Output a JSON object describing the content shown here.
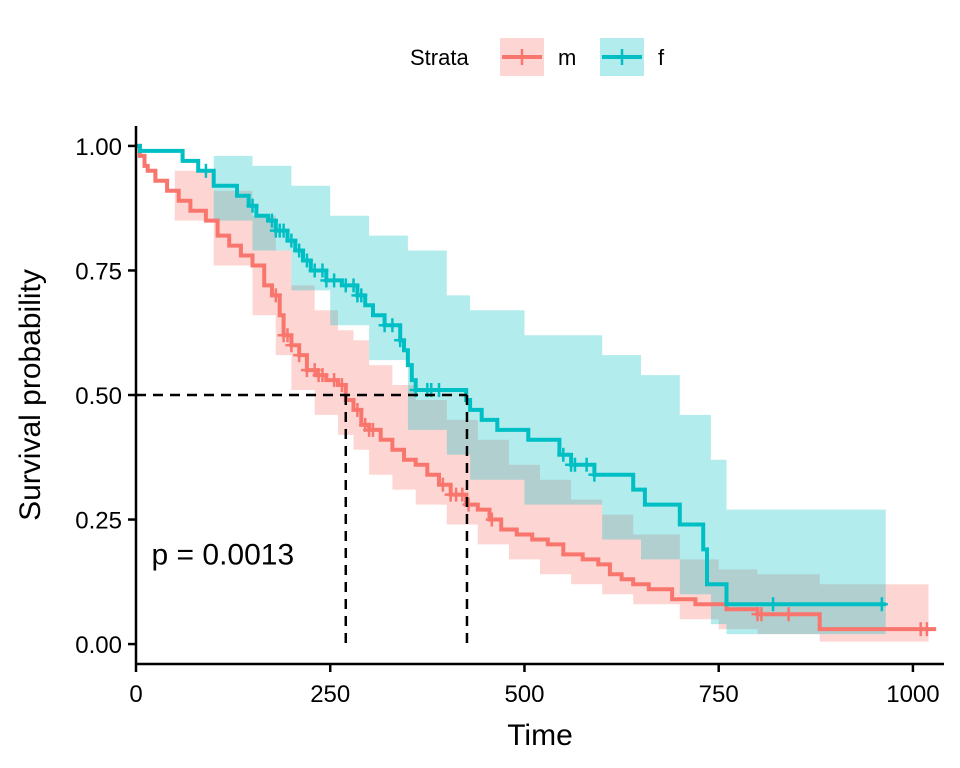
{
  "chart_data": {
    "type": "line",
    "subtype": "kaplan-meier",
    "title": "",
    "xlabel": "Time",
    "ylabel": "Survival probability",
    "xlim": [
      0,
      1040
    ],
    "ylim": [
      -0.04,
      1.04
    ],
    "xticks": [
      0,
      250,
      500,
      750,
      1000
    ],
    "xtick_labels": [
      "0",
      "250",
      "500",
      "750",
      "1000"
    ],
    "yticks": [
      0,
      0.25,
      0.5,
      0.75,
      1.0
    ],
    "ytick_labels": [
      "0.00",
      "0.25",
      "0.50",
      "0.75",
      "1.00"
    ],
    "grid": false,
    "legend": {
      "title": "Strata",
      "placement": "top",
      "entries": [
        "m",
        "f"
      ]
    },
    "annotations": [
      {
        "text": "p = 0.0013",
        "x": 20,
        "y": 0.18
      }
    ],
    "median_lines": {
      "y": 0.5,
      "x_values": [
        270,
        426
      ]
    },
    "series": [
      {
        "name": "m",
        "color": "#F8766D",
        "ci_color": "#F8766D",
        "steps": [
          [
            0,
            1.0
          ],
          [
            5,
            0.98
          ],
          [
            11,
            0.96
          ],
          [
            15,
            0.95
          ],
          [
            25,
            0.93
          ],
          [
            40,
            0.91
          ],
          [
            55,
            0.89
          ],
          [
            70,
            0.87
          ],
          [
            90,
            0.85
          ],
          [
            105,
            0.82
          ],
          [
            120,
            0.8
          ],
          [
            135,
            0.78
          ],
          [
            150,
            0.76
          ],
          [
            165,
            0.72
          ],
          [
            175,
            0.7
          ],
          [
            185,
            0.66
          ],
          [
            190,
            0.62
          ],
          [
            200,
            0.6
          ],
          [
            210,
            0.58
          ],
          [
            220,
            0.55
          ],
          [
            232,
            0.54
          ],
          [
            245,
            0.53
          ],
          [
            260,
            0.52
          ],
          [
            270,
            0.49
          ],
          [
            280,
            0.47
          ],
          [
            290,
            0.44
          ],
          [
            300,
            0.43
          ],
          [
            315,
            0.41
          ],
          [
            330,
            0.39
          ],
          [
            345,
            0.37
          ],
          [
            360,
            0.36
          ],
          [
            375,
            0.34
          ],
          [
            390,
            0.32
          ],
          [
            405,
            0.3
          ],
          [
            425,
            0.28
          ],
          [
            440,
            0.27
          ],
          [
            455,
            0.25
          ],
          [
            470,
            0.23
          ],
          [
            490,
            0.22
          ],
          [
            510,
            0.21
          ],
          [
            530,
            0.2
          ],
          [
            550,
            0.18
          ],
          [
            575,
            0.17
          ],
          [
            595,
            0.16
          ],
          [
            610,
            0.14
          ],
          [
            625,
            0.13
          ],
          [
            640,
            0.12
          ],
          [
            660,
            0.11
          ],
          [
            690,
            0.09
          ],
          [
            720,
            0.08
          ],
          [
            760,
            0.07
          ],
          [
            800,
            0.06
          ],
          [
            880,
            0.03
          ],
          [
            1030,
            0.03
          ]
        ],
        "ci_upper": [
          [
            0,
            1.0
          ],
          [
            50,
            0.95
          ],
          [
            100,
            0.91
          ],
          [
            150,
            0.86
          ],
          [
            180,
            0.79
          ],
          [
            200,
            0.72
          ],
          [
            230,
            0.67
          ],
          [
            260,
            0.63
          ],
          [
            280,
            0.61
          ],
          [
            300,
            0.56
          ],
          [
            330,
            0.52
          ],
          [
            360,
            0.49
          ],
          [
            400,
            0.45
          ],
          [
            440,
            0.41
          ],
          [
            480,
            0.36
          ],
          [
            520,
            0.33
          ],
          [
            560,
            0.29
          ],
          [
            600,
            0.26
          ],
          [
            640,
            0.22
          ],
          [
            700,
            0.17
          ],
          [
            750,
            0.15
          ],
          [
            800,
            0.14
          ],
          [
            880,
            0.12
          ],
          [
            1020,
            0.12
          ]
        ],
        "ci_lower": [
          [
            0,
            1.0
          ],
          [
            50,
            0.85
          ],
          [
            100,
            0.76
          ],
          [
            150,
            0.66
          ],
          [
            180,
            0.58
          ],
          [
            200,
            0.51
          ],
          [
            230,
            0.46
          ],
          [
            260,
            0.42
          ],
          [
            280,
            0.39
          ],
          [
            300,
            0.34
          ],
          [
            330,
            0.31
          ],
          [
            360,
            0.28
          ],
          [
            400,
            0.24
          ],
          [
            440,
            0.2
          ],
          [
            480,
            0.17
          ],
          [
            520,
            0.14
          ],
          [
            560,
            0.12
          ],
          [
            600,
            0.1
          ],
          [
            640,
            0.08
          ],
          [
            700,
            0.05
          ],
          [
            750,
            0.03
          ],
          [
            800,
            0.02
          ],
          [
            880,
            0.005
          ],
          [
            1020,
            0.005
          ]
        ],
        "censor_times": [
          180,
          190,
          195,
          200,
          210,
          220,
          230,
          235,
          240,
          255,
          265,
          285,
          295,
          300,
          305,
          395,
          405,
          412,
          420,
          428,
          458,
          800,
          805,
          840,
          1010,
          1018
        ]
      },
      {
        "name": "f",
        "color": "#00BFC4",
        "ci_color": "#00BFC4",
        "steps": [
          [
            0,
            1.0
          ],
          [
            5,
            0.99
          ],
          [
            60,
            0.97
          ],
          [
            80,
            0.95
          ],
          [
            100,
            0.92
          ],
          [
            130,
            0.9
          ],
          [
            145,
            0.88
          ],
          [
            155,
            0.86
          ],
          [
            170,
            0.85
          ],
          [
            180,
            0.83
          ],
          [
            195,
            0.81
          ],
          [
            205,
            0.79
          ],
          [
            215,
            0.77
          ],
          [
            225,
            0.75
          ],
          [
            245,
            0.73
          ],
          [
            265,
            0.72
          ],
          [
            285,
            0.7
          ],
          [
            295,
            0.68
          ],
          [
            305,
            0.66
          ],
          [
            320,
            0.64
          ],
          [
            340,
            0.61
          ],
          [
            345,
            0.59
          ],
          [
            350,
            0.56
          ],
          [
            355,
            0.53
          ],
          [
            360,
            0.51
          ],
          [
            425,
            0.49
          ],
          [
            430,
            0.47
          ],
          [
            445,
            0.45
          ],
          [
            465,
            0.43
          ],
          [
            505,
            0.41
          ],
          [
            545,
            0.38
          ],
          [
            560,
            0.36
          ],
          [
            590,
            0.34
          ],
          [
            640,
            0.31
          ],
          [
            655,
            0.28
          ],
          [
            700,
            0.24
          ],
          [
            730,
            0.19
          ],
          [
            735,
            0.12
          ],
          [
            760,
            0.08
          ],
          [
            965,
            0.08
          ]
        ],
        "ci_upper": [
          [
            0,
            1.0
          ],
          [
            100,
            0.98
          ],
          [
            150,
            0.96
          ],
          [
            200,
            0.92
          ],
          [
            250,
            0.86
          ],
          [
            300,
            0.82
          ],
          [
            350,
            0.79
          ],
          [
            400,
            0.7
          ],
          [
            430,
            0.67
          ],
          [
            500,
            0.62
          ],
          [
            600,
            0.58
          ],
          [
            650,
            0.54
          ],
          [
            700,
            0.46
          ],
          [
            740,
            0.37
          ],
          [
            760,
            0.27
          ],
          [
            965,
            0.27
          ]
        ],
        "ci_lower": [
          [
            0,
            1.0
          ],
          [
            100,
            0.85
          ],
          [
            150,
            0.79
          ],
          [
            200,
            0.71
          ],
          [
            250,
            0.64
          ],
          [
            300,
            0.57
          ],
          [
            350,
            0.43
          ],
          [
            400,
            0.38
          ],
          [
            430,
            0.33
          ],
          [
            500,
            0.28
          ],
          [
            600,
            0.21
          ],
          [
            650,
            0.17
          ],
          [
            700,
            0.1
          ],
          [
            740,
            0.04
          ],
          [
            760,
            0.02
          ],
          [
            965,
            0.02
          ]
        ],
        "censor_times": [
          90,
          150,
          175,
          180,
          185,
          190,
          200,
          210,
          220,
          230,
          240,
          245,
          255,
          270,
          280,
          285,
          290,
          320,
          330,
          340,
          360,
          375,
          380,
          390,
          550,
          560,
          565,
          580,
          590,
          820,
          960
        ]
      }
    ]
  }
}
